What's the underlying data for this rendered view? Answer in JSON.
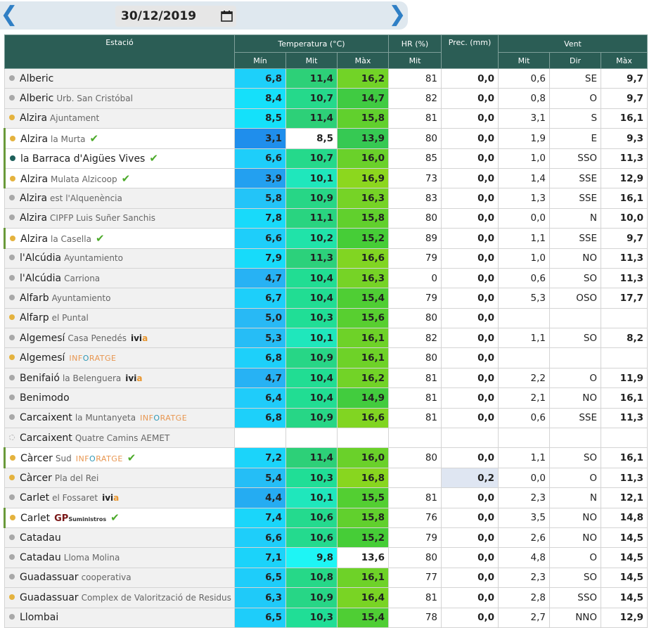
{
  "date": "30/12/2019",
  "icons": {
    "prev": "chevron-left-icon",
    "next": "chevron-right-icon",
    "calendar": "calendar-icon",
    "check": "check-icon"
  },
  "colors": {
    "header_bg": "#2b5d55",
    "dot_grey": "#a8a8a8",
    "dot_yellow": "#e4b23e",
    "dot_teal": "#1d5f5a",
    "check": "#4caa2a"
  },
  "header": {
    "station": "Estació",
    "temperature": "Temperatura (°C)",
    "hr": "HR (%)",
    "prec": "Prec. (mm)",
    "wind": "Vent",
    "min": "Mín",
    "mit": "Mit",
    "max": "Màx",
    "hr_mit": "Mit",
    "wind_mit": "Mit",
    "wind_dir": "Dir",
    "wind_max": "Màx"
  },
  "rows": [
    {
      "dot": "grey",
      "name": "Alberic",
      "sub": "",
      "badge": "",
      "check": false,
      "min": "6,8",
      "mit": "11,4",
      "max": "16,2",
      "hr": "81",
      "prec": "0,0",
      "wmit": "0,6",
      "wdir": "SE",
      "wmax": "9,7"
    },
    {
      "dot": "grey",
      "name": "Alberic",
      "sub": "Urb. San Cristóbal",
      "badge": "",
      "check": false,
      "min": "8,4",
      "mit": "10,7",
      "max": "14,7",
      "hr": "82",
      "prec": "0,0",
      "wmit": "0,8",
      "wdir": "O",
      "wmax": "9,7"
    },
    {
      "dot": "yellow",
      "name": "Alzira",
      "sub": "Ajuntament",
      "badge": "",
      "check": false,
      "min": "8,5",
      "mit": "11,4",
      "max": "15,8",
      "hr": "81",
      "prec": "0,0",
      "wmit": "3,1",
      "wdir": "S",
      "wmax": "16,1"
    },
    {
      "dot": "yellow",
      "name": "Alzira",
      "sub": "la Murta",
      "badge": "",
      "check": true,
      "min": "3,1",
      "mit": "8,5",
      "max": "13,9",
      "hr": "80",
      "prec": "0,0",
      "wmit": "1,9",
      "wdir": "E",
      "wmax": "9,3"
    },
    {
      "dot": "teal",
      "name": "la Barraca d'Aigües Vives",
      "sub": "",
      "badge": "",
      "check": true,
      "min": "6,6",
      "mit": "10,7",
      "max": "16,0",
      "hr": "85",
      "prec": "0,0",
      "wmit": "1,0",
      "wdir": "SSO",
      "wmax": "11,3"
    },
    {
      "dot": "yellow",
      "name": "Alzira",
      "sub": "Mulata Alzicoop",
      "badge": "",
      "check": true,
      "min": "3,9",
      "mit": "10,1",
      "max": "16,9",
      "hr": "73",
      "prec": "0,0",
      "wmit": "1,4",
      "wdir": "SSE",
      "wmax": "12,9"
    },
    {
      "dot": "grey",
      "name": "Alzira",
      "sub": "est l'Alquenència",
      "badge": "",
      "check": false,
      "min": "5,8",
      "mit": "10,9",
      "max": "16,3",
      "hr": "83",
      "prec": "0,0",
      "wmit": "1,3",
      "wdir": "SSE",
      "wmax": "16,1"
    },
    {
      "dot": "grey",
      "name": "Alzira",
      "sub": "CIPFP Luis Suñer Sanchis",
      "badge": "",
      "check": false,
      "min": "7,8",
      "mit": "11,1",
      "max": "15,8",
      "hr": "80",
      "prec": "0,0",
      "wmit": "0,0",
      "wdir": "N",
      "wmax": "10,0"
    },
    {
      "dot": "yellow",
      "name": "Alzira",
      "sub": "la Casella",
      "badge": "",
      "check": true,
      "min": "6,6",
      "mit": "10,2",
      "max": "15,2",
      "hr": "89",
      "prec": "0,0",
      "wmit": "1,1",
      "wdir": "SSE",
      "wmax": "9,7"
    },
    {
      "dot": "grey",
      "name": "l'Alcúdia",
      "sub": "Ayuntamiento",
      "badge": "",
      "check": false,
      "min": "7,9",
      "mit": "11,3",
      "max": "16,6",
      "hr": "79",
      "prec": "0,0",
      "wmit": "1,0",
      "wdir": "NO",
      "wmax": "11,3"
    },
    {
      "dot": "grey",
      "name": "l'Alcúdia",
      "sub": "Carriona",
      "badge": "",
      "check": false,
      "min": "4,7",
      "mit": "10,4",
      "max": "16,3",
      "hr": "0",
      "prec": "0,0",
      "wmit": "0,6",
      "wdir": "SO",
      "wmax": "11,3"
    },
    {
      "dot": "grey",
      "name": "Alfarb",
      "sub": "Ayuntamiento",
      "badge": "",
      "check": false,
      "min": "6,7",
      "mit": "10,4",
      "max": "15,4",
      "hr": "79",
      "prec": "0,0",
      "wmit": "5,3",
      "wdir": "OSO",
      "wmax": "17,7"
    },
    {
      "dot": "yellow",
      "name": "Alfarp",
      "sub": "el Puntal",
      "badge": "",
      "check": false,
      "min": "5,0",
      "mit": "10,3",
      "max": "15,6",
      "hr": "80",
      "prec": "0,0",
      "wmit": "",
      "wdir": "",
      "wmax": ""
    },
    {
      "dot": "grey",
      "name": "Algemesí",
      "sub": "Casa Penedés",
      "badge": "ivia",
      "check": false,
      "min": "5,3",
      "mit": "10,1",
      "max": "16,1",
      "hr": "82",
      "prec": "0,0",
      "wmit": "1,1",
      "wdir": "SO",
      "wmax": "8,2"
    },
    {
      "dot": "yellow",
      "name": "Algemesí",
      "sub": "",
      "badge": "info",
      "check": false,
      "min": "6,8",
      "mit": "10,9",
      "max": "16,1",
      "hr": "80",
      "prec": "0,0",
      "wmit": "",
      "wdir": "",
      "wmax": ""
    },
    {
      "dot": "grey",
      "name": "Benifaió",
      "sub": "la Belenguera",
      "badge": "ivia",
      "check": false,
      "min": "4,7",
      "mit": "10,4",
      "max": "16,2",
      "hr": "81",
      "prec": "0,0",
      "wmit": "2,2",
      "wdir": "O",
      "wmax": "11,9"
    },
    {
      "dot": "grey",
      "name": "Benimodo",
      "sub": "",
      "badge": "",
      "check": false,
      "min": "6,4",
      "mit": "10,4",
      "max": "14,9",
      "hr": "81",
      "prec": "0,0",
      "wmit": "2,1",
      "wdir": "NO",
      "wmax": "16,1"
    },
    {
      "dot": "grey",
      "name": "Carcaixent",
      "sub": "la Muntanyeta",
      "badge": "info",
      "check": false,
      "min": "6,8",
      "mit": "10,9",
      "max": "16,6",
      "hr": "81",
      "prec": "0,0",
      "wmit": "0,6",
      "wdir": "SSE",
      "wmax": "11,3"
    },
    {
      "dot": "empty",
      "name": "Carcaixent",
      "sub": "Quatre Camins AEMET",
      "badge": "",
      "check": false,
      "min": "",
      "mit": "",
      "max": "",
      "hr": "",
      "prec": "",
      "wmit": "",
      "wdir": "",
      "wmax": ""
    },
    {
      "dot": "yellow",
      "name": "Càrcer",
      "sub": "Sud",
      "badge": "info",
      "check": true,
      "min": "7,2",
      "mit": "11,4",
      "max": "16,0",
      "hr": "80",
      "prec": "0,0",
      "wmit": "1,1",
      "wdir": "SO",
      "wmax": "16,1"
    },
    {
      "dot": "yellow",
      "name": "Càrcer",
      "sub": "Pla del Rei",
      "badge": "",
      "check": false,
      "min": "5,4",
      "mit": "10,3",
      "max": "16,8",
      "hr": "",
      "prec": "0,2",
      "wmit": "0,0",
      "wdir": "O",
      "wmax": "11,3"
    },
    {
      "dot": "grey",
      "name": "Carlet",
      "sub": "el Fossaret",
      "badge": "ivia",
      "check": false,
      "min": "4,4",
      "mit": "10,1",
      "max": "15,5",
      "hr": "81",
      "prec": "0,0",
      "wmit": "2,3",
      "wdir": "N",
      "wmax": "12,1"
    },
    {
      "dot": "yellow",
      "name": "Carlet",
      "sub": "",
      "badge": "gp",
      "check": true,
      "min": "7,4",
      "mit": "10,6",
      "max": "15,8",
      "hr": "76",
      "prec": "0,0",
      "wmit": "3,5",
      "wdir": "NO",
      "wmax": "14,8"
    },
    {
      "dot": "grey",
      "name": "Catadau",
      "sub": "",
      "badge": "",
      "check": false,
      "min": "6,6",
      "mit": "10,6",
      "max": "15,2",
      "hr": "79",
      "prec": "0,0",
      "wmit": "2,6",
      "wdir": "NO",
      "wmax": "14,5"
    },
    {
      "dot": "grey",
      "name": "Catadau",
      "sub": "Lloma Molina",
      "badge": "",
      "check": false,
      "min": "7,1",
      "mit": "9,8",
      "max": "13,6",
      "hr": "80",
      "prec": "0,0",
      "wmit": "4,8",
      "wdir": "O",
      "wmax": "14,5"
    },
    {
      "dot": "grey",
      "name": "Guadassuar",
      "sub": "cooperativa",
      "badge": "",
      "check": false,
      "min": "6,5",
      "mit": "10,8",
      "max": "16,1",
      "hr": "77",
      "prec": "0,0",
      "wmit": "2,3",
      "wdir": "SO",
      "wmax": "14,5"
    },
    {
      "dot": "yellow",
      "name": "Guadassuar",
      "sub": "Complex de Valorització de Residus",
      "badge": "",
      "check": false,
      "min": "6,3",
      "mit": "10,9",
      "max": "16,4",
      "hr": "81",
      "prec": "0,0",
      "wmit": "2,8",
      "wdir": "SSO",
      "wmax": "14,5"
    },
    {
      "dot": "grey",
      "name": "Llombai",
      "sub": "",
      "badge": "",
      "check": false,
      "min": "6,5",
      "mit": "10,3",
      "max": "15,4",
      "hr": "78",
      "prec": "0,0",
      "wmit": "2,7",
      "wdir": "NNO",
      "wmax": "12,9"
    }
  ],
  "badges": {
    "ivia": {
      "a": "ivi",
      "b": "a"
    },
    "info": {
      "a": "INF",
      "b": "O",
      "c": "RATGE"
    },
    "gp": {
      "a": "GP",
      "b": "Suministros"
    }
  }
}
